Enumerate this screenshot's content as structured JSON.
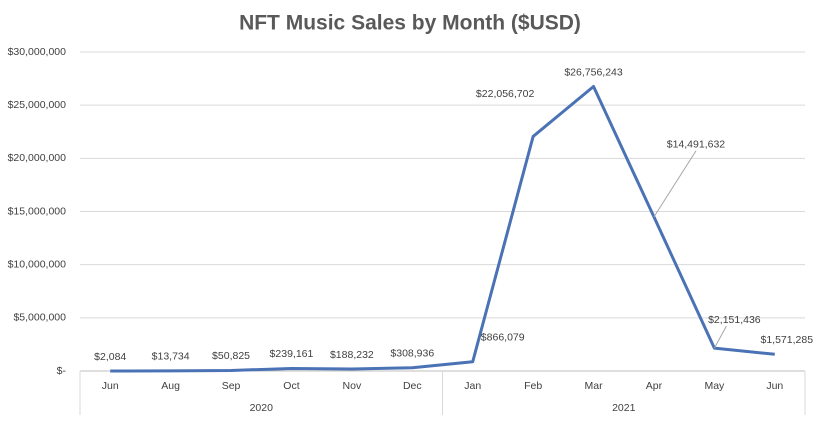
{
  "chart_data": {
    "type": "line",
    "title": "NFT Music Sales by Month ($USD)",
    "categories": [
      "Jun",
      "Aug",
      "Sep",
      "Oct",
      "Nov",
      "Dec",
      "Jan",
      "Feb",
      "Mar",
      "Apr",
      "May",
      "Jun"
    ],
    "category_groups": [
      "2020",
      "2020",
      "2020",
      "2020",
      "2020",
      "2020",
      "2021",
      "2021",
      "2021",
      "2021",
      "2021",
      "2021"
    ],
    "series": [
      {
        "name": "NFT Music Sales",
        "color": "#4a72b5",
        "values": [
          2084,
          13734,
          50825,
          239161,
          188232,
          308936,
          866079,
          22056702,
          26756243,
          14491632,
          2151436,
          1571285
        ],
        "value_labels": [
          "$2,084",
          "$13,734",
          "$50,825",
          "$239,161",
          "$188,232",
          "$308,936",
          "$866,079",
          "$22,056,702",
          "$26,756,243",
          "$14,491,632",
          "$2,151,436",
          "$1,571,285"
        ]
      }
    ],
    "ylim": [
      0,
      30000000
    ],
    "yticks": [
      {
        "value": 0,
        "label": "$-"
      },
      {
        "value": 5000000,
        "label": "$5,000,000"
      },
      {
        "value": 10000000,
        "label": "$10,000,000"
      },
      {
        "value": 15000000,
        "label": "$15,000,000"
      },
      {
        "value": 20000000,
        "label": "$20,000,000"
      },
      {
        "value": 25000000,
        "label": "$25,000,000"
      },
      {
        "value": 30000000,
        "label": "$30,000,000"
      }
    ],
    "grid": true
  }
}
